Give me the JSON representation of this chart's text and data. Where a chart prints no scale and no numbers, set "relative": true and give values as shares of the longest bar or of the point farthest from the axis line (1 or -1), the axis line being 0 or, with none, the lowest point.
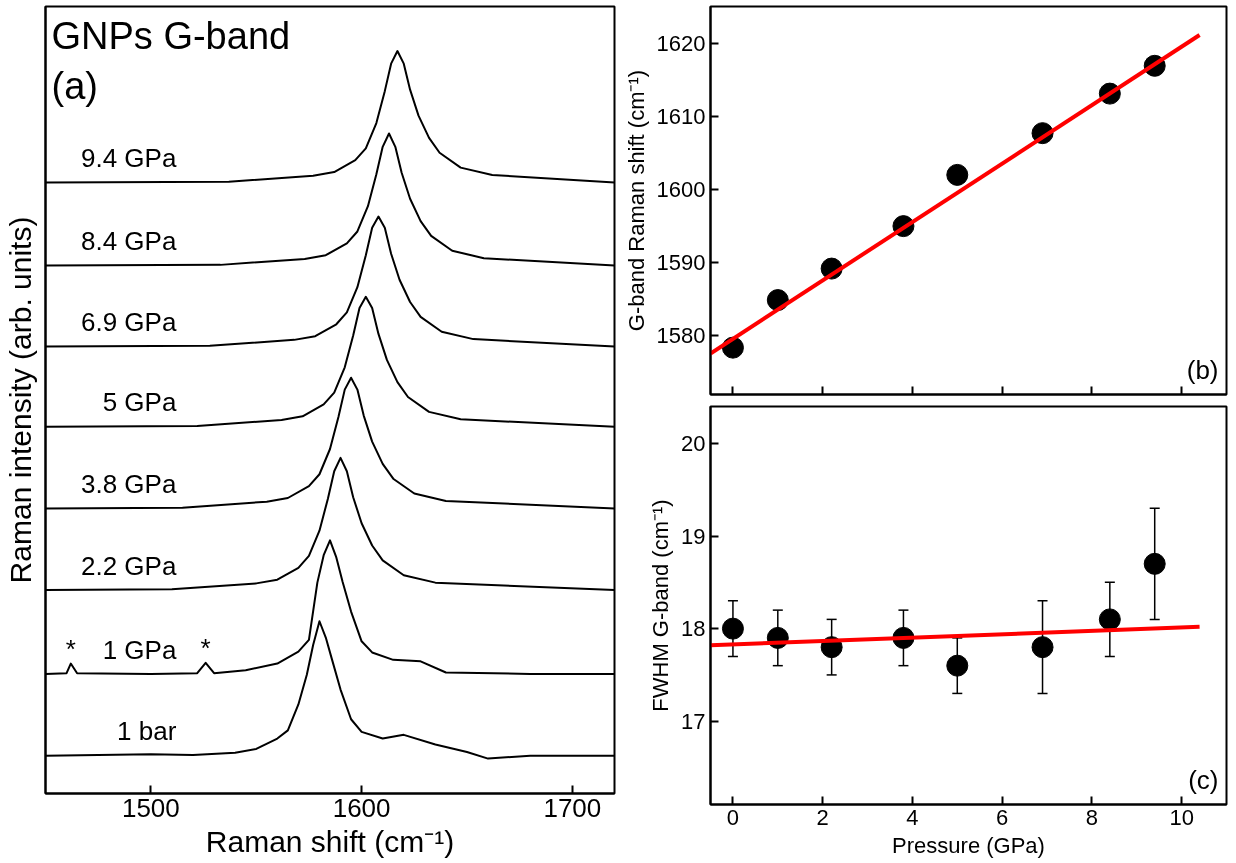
{
  "chart_data": [
    {
      "type": "line",
      "title": "GNPs G-band",
      "xlabel": "Raman shift (cm⁻¹)",
      "ylabel": "Raman intensity (arb. units)",
      "relative": true,
      "xlim": [
        1450,
        1720
      ],
      "xticks": [
        1500,
        1600,
        1700
      ],
      "grid": false,
      "annotations": [
        "(a)",
        {
          "text": "*",
          "x": 1462,
          "y": 0.175
        },
        {
          "text": "*",
          "x": 1526,
          "y": 0.176
        }
      ],
      "series": [
        {
          "name": "1 bar",
          "color": "#000000",
          "x": [
            1450,
            1500,
            1520,
            1540,
            1550,
            1560,
            1565,
            1570,
            1574,
            1577,
            1580,
            1583,
            1586,
            1590,
            1595,
            1600,
            1610,
            1620,
            1635,
            1650,
            1660,
            1680,
            1720
          ],
          "values": [
            0.051,
            0.053,
            0.052,
            0.055,
            0.06,
            0.074,
            0.085,
            0.12,
            0.16,
            0.2,
            0.232,
            0.21,
            0.18,
            0.14,
            0.1,
            0.083,
            0.074,
            0.079,
            0.066,
            0.056,
            0.047,
            0.051,
            0.051
          ]
        },
        {
          "name": "1 GPa",
          "color": "#000000",
          "x": [
            1450,
            1460,
            1462,
            1465,
            1500,
            1522,
            1526,
            1530,
            1545,
            1560,
            1570,
            1575,
            1579,
            1582,
            1585,
            1588,
            1591,
            1595,
            1600,
            1605,
            1615,
            1628,
            1640,
            1680,
            1720
          ],
          "values": [
            0.161,
            0.162,
            0.175,
            0.162,
            0.161,
            0.162,
            0.176,
            0.162,
            0.166,
            0.175,
            0.191,
            0.207,
            0.284,
            0.321,
            0.341,
            0.318,
            0.285,
            0.245,
            0.205,
            0.19,
            0.18,
            0.178,
            0.163,
            0.161,
            0.161
          ]
        },
        {
          "name": "2.2 GPa",
          "color": "#000000",
          "x": [
            1450,
            1510,
            1550,
            1560,
            1570,
            1575,
            1580,
            1584,
            1587,
            1590,
            1593,
            1596,
            1600,
            1605,
            1610,
            1620,
            1635,
            1720
          ],
          "values": [
            0.274,
            0.275,
            0.283,
            0.288,
            0.304,
            0.32,
            0.354,
            0.397,
            0.434,
            0.452,
            0.434,
            0.399,
            0.364,
            0.334,
            0.314,
            0.294,
            0.284,
            0.274
          ]
        },
        {
          "name": "3.8 GPa",
          "color": "#000000",
          "x": [
            1450,
            1515,
            1555,
            1565,
            1575,
            1580,
            1585,
            1589,
            1592,
            1595,
            1598,
            1601,
            1605,
            1610,
            1615,
            1625,
            1640,
            1720
          ],
          "values": [
            0.384,
            0.385,
            0.393,
            0.398,
            0.414,
            0.43,
            0.464,
            0.507,
            0.544,
            0.56,
            0.544,
            0.509,
            0.474,
            0.444,
            0.424,
            0.404,
            0.394,
            0.384
          ]
        },
        {
          "name": "5 GPa",
          "color": "#000000",
          "x": [
            1450,
            1522,
            1562,
            1572,
            1582,
            1587,
            1592,
            1596,
            1599,
            1602,
            1605,
            1608,
            1612,
            1617,
            1622,
            1632,
            1647,
            1720
          ],
          "values": [
            0.494,
            0.495,
            0.503,
            0.508,
            0.524,
            0.54,
            0.574,
            0.617,
            0.654,
            0.669,
            0.654,
            0.619,
            0.584,
            0.554,
            0.534,
            0.514,
            0.504,
            0.494
          ]
        },
        {
          "name": "6.9 GPa",
          "color": "#000000",
          "x": [
            1450,
            1528,
            1568,
            1578,
            1588,
            1593,
            1598,
            1602,
            1605,
            1608,
            1611,
            1614,
            1618,
            1623,
            1628,
            1638,
            1653,
            1720
          ],
          "values": [
            0.602,
            0.603,
            0.611,
            0.616,
            0.632,
            0.648,
            0.682,
            0.725,
            0.762,
            0.777,
            0.762,
            0.727,
            0.692,
            0.662,
            0.642,
            0.622,
            0.612,
            0.602
          ]
        },
        {
          "name": "8.4 GPa",
          "color": "#000000",
          "x": [
            1450,
            1533,
            1573,
            1583,
            1593,
            1598,
            1603,
            1607,
            1610,
            1613,
            1616,
            1619,
            1623,
            1628,
            1633,
            1643,
            1658,
            1720
          ],
          "values": [
            0.711,
            0.712,
            0.72,
            0.725,
            0.741,
            0.757,
            0.791,
            0.834,
            0.871,
            0.889,
            0.871,
            0.836,
            0.801,
            0.771,
            0.751,
            0.731,
            0.721,
            0.711
          ]
        },
        {
          "name": "9.4 GPa",
          "color": "#000000",
          "x": [
            1450,
            1537,
            1577,
            1587,
            1597,
            1602,
            1607,
            1611,
            1614,
            1617,
            1620,
            1623,
            1627,
            1632,
            1637,
            1647,
            1662,
            1720
          ],
          "values": [
            0.823,
            0.824,
            0.832,
            0.837,
            0.853,
            0.869,
            0.903,
            0.946,
            0.983,
            1,
            0.983,
            0.948,
            0.913,
            0.883,
            0.863,
            0.843,
            0.833,
            0.823
          ]
        }
      ]
    },
    {
      "type": "scatter",
      "ylabel": "G-band Raman shift (cm⁻¹)",
      "x": [
        0,
        1,
        2.2,
        3.8,
        5,
        6.9,
        8.4,
        9.4
      ],
      "xlim": [
        -0.5,
        11
      ],
      "xticks": [
        0,
        2,
        4,
        6,
        8,
        10
      ],
      "ylim": [
        1572,
        1625
      ],
      "yticks": [
        1580,
        1590,
        1600,
        1610,
        1620
      ],
      "tick_labels": "y",
      "grid": false,
      "annotations": [
        "(b)"
      ],
      "series": [
        {
          "color": "#000000",
          "marker": "circle",
          "values": [
            1578.4,
            1584.9,
            1589.2,
            1595.0,
            1602.0,
            1607.7,
            1613.1,
            1616.9
          ]
        },
        {
          "type": "line",
          "color": "#ff0000",
          "x": [
            -0.5,
            10.4
          ],
          "values": [
            1577.6,
            1621.1
          ]
        }
      ]
    },
    {
      "type": "scatter",
      "xlabel": "Pressure (GPa)",
      "ylabel": "FWHM G-band (cm⁻¹)",
      "x": [
        0,
        1,
        2.2,
        3.8,
        5,
        6.9,
        8.4,
        9.4
      ],
      "xlim": [
        -0.5,
        11
      ],
      "xticks": [
        0,
        2,
        4,
        6,
        8,
        10
      ],
      "ylim": [
        16.1,
        20.4
      ],
      "yticks": [
        17,
        18,
        19,
        20
      ],
      "grid": false,
      "annotations": [
        "(c)"
      ],
      "series": [
        {
          "color": "#000000",
          "marker": "circle",
          "values": [
            18.0,
            17.9,
            17.8,
            17.9,
            17.6,
            17.8,
            18.1,
            18.7
          ],
          "errors": [
            0.3,
            0.3,
            0.3,
            0.3,
            0.3,
            0.5,
            0.4,
            0.6
          ]
        },
        {
          "type": "line",
          "color": "#ff0000",
          "x": [
            -0.5,
            10.4
          ],
          "values": [
            17.82,
            18.02
          ]
        }
      ]
    }
  ]
}
